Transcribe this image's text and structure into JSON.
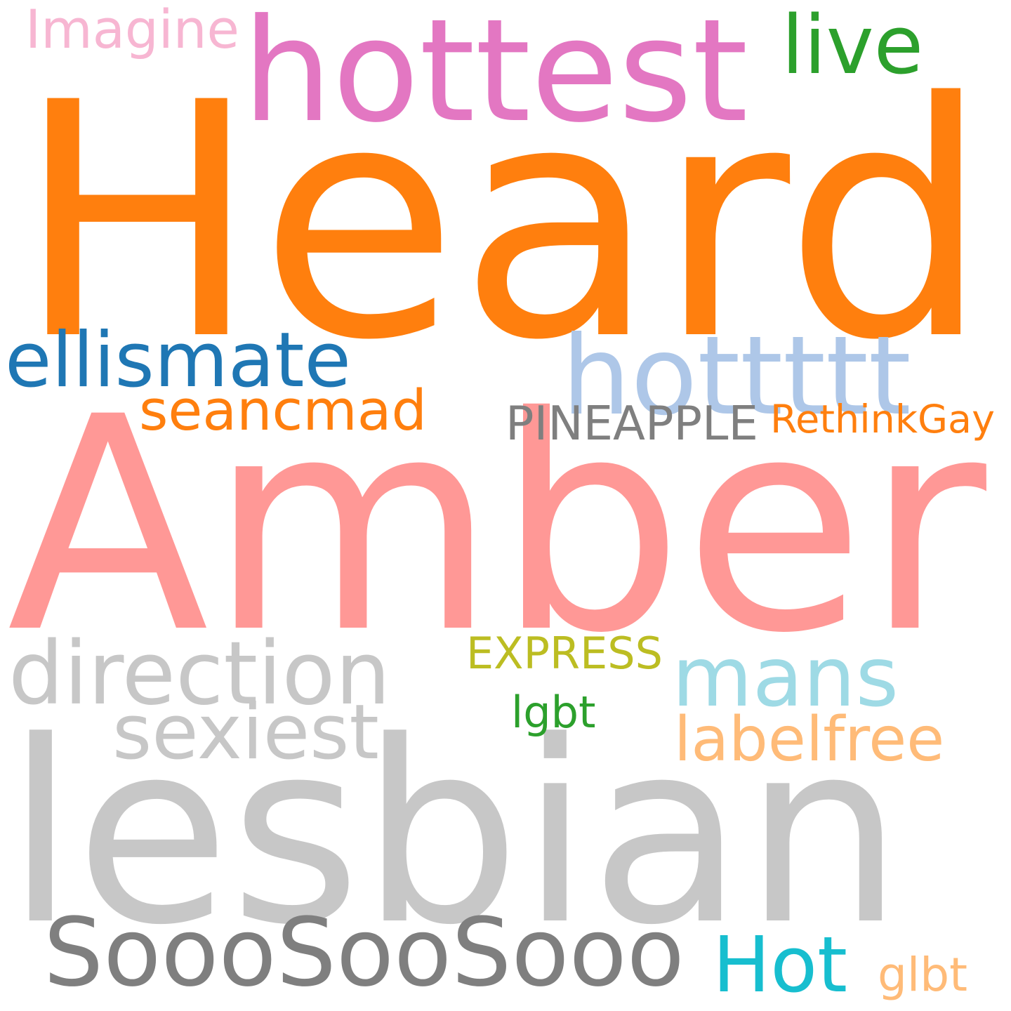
{
  "words": [
    {
      "id": "heard",
      "text": "Heard",
      "color": "#ff7f0e"
    },
    {
      "id": "amber",
      "text": "Amber",
      "color": "#ff9896"
    },
    {
      "id": "lesbian",
      "text": "lesbian",
      "color": "#c7c7c7"
    },
    {
      "id": "hottest",
      "text": "hottest",
      "color": "#e377c2"
    },
    {
      "id": "imagine",
      "text": "Imagine",
      "color": "#f7b6d2"
    },
    {
      "id": "live",
      "text": "live",
      "color": "#2ca02c"
    },
    {
      "id": "ellismate",
      "text": "ellismate",
      "color": "#1f77b4"
    },
    {
      "id": "hottttt",
      "text": "hottttt",
      "color": "#aec7e8"
    },
    {
      "id": "seancmad",
      "text": "seancmad",
      "color": "#ff7f0e"
    },
    {
      "id": "pineapple",
      "text": "PINEAPPLE",
      "color": "#7f7f7f"
    },
    {
      "id": "rethinkgay",
      "text": "RethinkGay",
      "color": "#ff7f0e"
    },
    {
      "id": "direction",
      "text": "direction",
      "color": "#c7c7c7"
    },
    {
      "id": "express",
      "text": "EXPRESS",
      "color": "#bcbd22"
    },
    {
      "id": "mans",
      "text": "mans",
      "color": "#9edae5"
    },
    {
      "id": "lgbt",
      "text": "lgbt",
      "color": "#2ca02c"
    },
    {
      "id": "sexiest",
      "text": "sexiest",
      "color": "#c7c7c7"
    },
    {
      "id": "labelfree",
      "text": "labelfree",
      "color": "#ffbb78"
    },
    {
      "id": "sooo",
      "text": "SoooSooSooo",
      "color": "#7f7f7f"
    },
    {
      "id": "hot",
      "text": "Hot",
      "color": "#17becf"
    },
    {
      "id": "glbt",
      "text": "glbt",
      "color": "#ffbb78"
    }
  ]
}
